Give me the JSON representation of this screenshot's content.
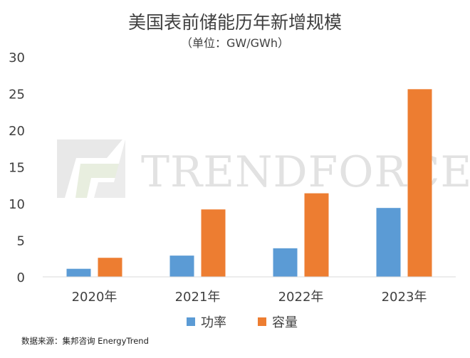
{
  "colors": {
    "power": "#5b9bd5",
    "capacity": "#ed7d31",
    "axis": "#d9d9d9",
    "text": "#404040",
    "watermark": "#e2e2e2"
  },
  "watermark": {
    "text": "TRENDFORCE",
    "logo": "trendforce-logo"
  },
  "source": "数据来源：集邦咨询 EnergyTrend",
  "chart_data": {
    "type": "bar",
    "title": "美国表前储能历年新增规模",
    "subtitle": "（单位：GW/GWh）",
    "categories": [
      "2020年",
      "2021年",
      "2022年",
      "2023年"
    ],
    "series": [
      {
        "name": "功率",
        "color": "#5b9bd5",
        "values": [
          1.1,
          2.9,
          3.9,
          9.4
        ]
      },
      {
        "name": "容量",
        "color": "#ed7d31",
        "values": [
          2.6,
          9.2,
          11.4,
          25.6
        ]
      }
    ],
    "ylim": [
      0,
      30
    ],
    "yticks": [
      0,
      5,
      10,
      15,
      20,
      25,
      30
    ],
    "grid": false,
    "legend_position": "bottom"
  }
}
